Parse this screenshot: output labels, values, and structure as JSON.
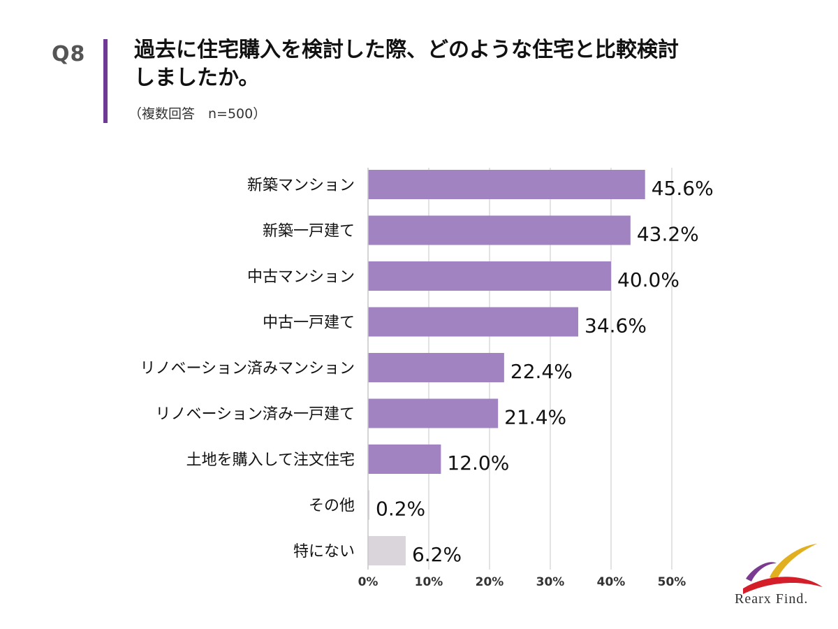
{
  "header": {
    "question_label": "Q8",
    "title_line1": "過去に住宅購入を検討した際、どのような住宅と比較検討",
    "title_line2": "しましたか。",
    "subtitle": "（複数回答　n=500）"
  },
  "colors": {
    "accent": "#6f3a96",
    "bar": "#a083c0",
    "bar_muted": "#d9d5da",
    "grid": "#d0d0d0"
  },
  "chart_data": {
    "type": "bar",
    "orientation": "horizontal",
    "categories": [
      "新築マンション",
      "新築一戸建て",
      "中古マンション",
      "中古一戸建て",
      "リノベーション済みマンション",
      "リノベーション済み一戸建て",
      "土地を購入して注文住宅",
      "その他",
      "特にない"
    ],
    "values": [
      45.6,
      43.2,
      40.0,
      34.6,
      22.4,
      21.4,
      12.0,
      0.2,
      6.2
    ],
    "value_labels": [
      "45.6%",
      "43.2%",
      "40.0%",
      "34.6%",
      "22.4%",
      "21.4%",
      "12.0%",
      "0.2%",
      "6.2%"
    ],
    "muted_categories": [
      "その他",
      "特にない"
    ],
    "x_ticks": [
      "0%",
      "10%",
      "20%",
      "30%",
      "40%",
      "50%"
    ],
    "x_tick_values": [
      0,
      10,
      20,
      30,
      40,
      50
    ],
    "xlim": [
      0,
      50
    ],
    "grid": true,
    "title": "",
    "xlabel": "",
    "ylabel": ""
  },
  "logo": {
    "text": "Rearx Find."
  }
}
